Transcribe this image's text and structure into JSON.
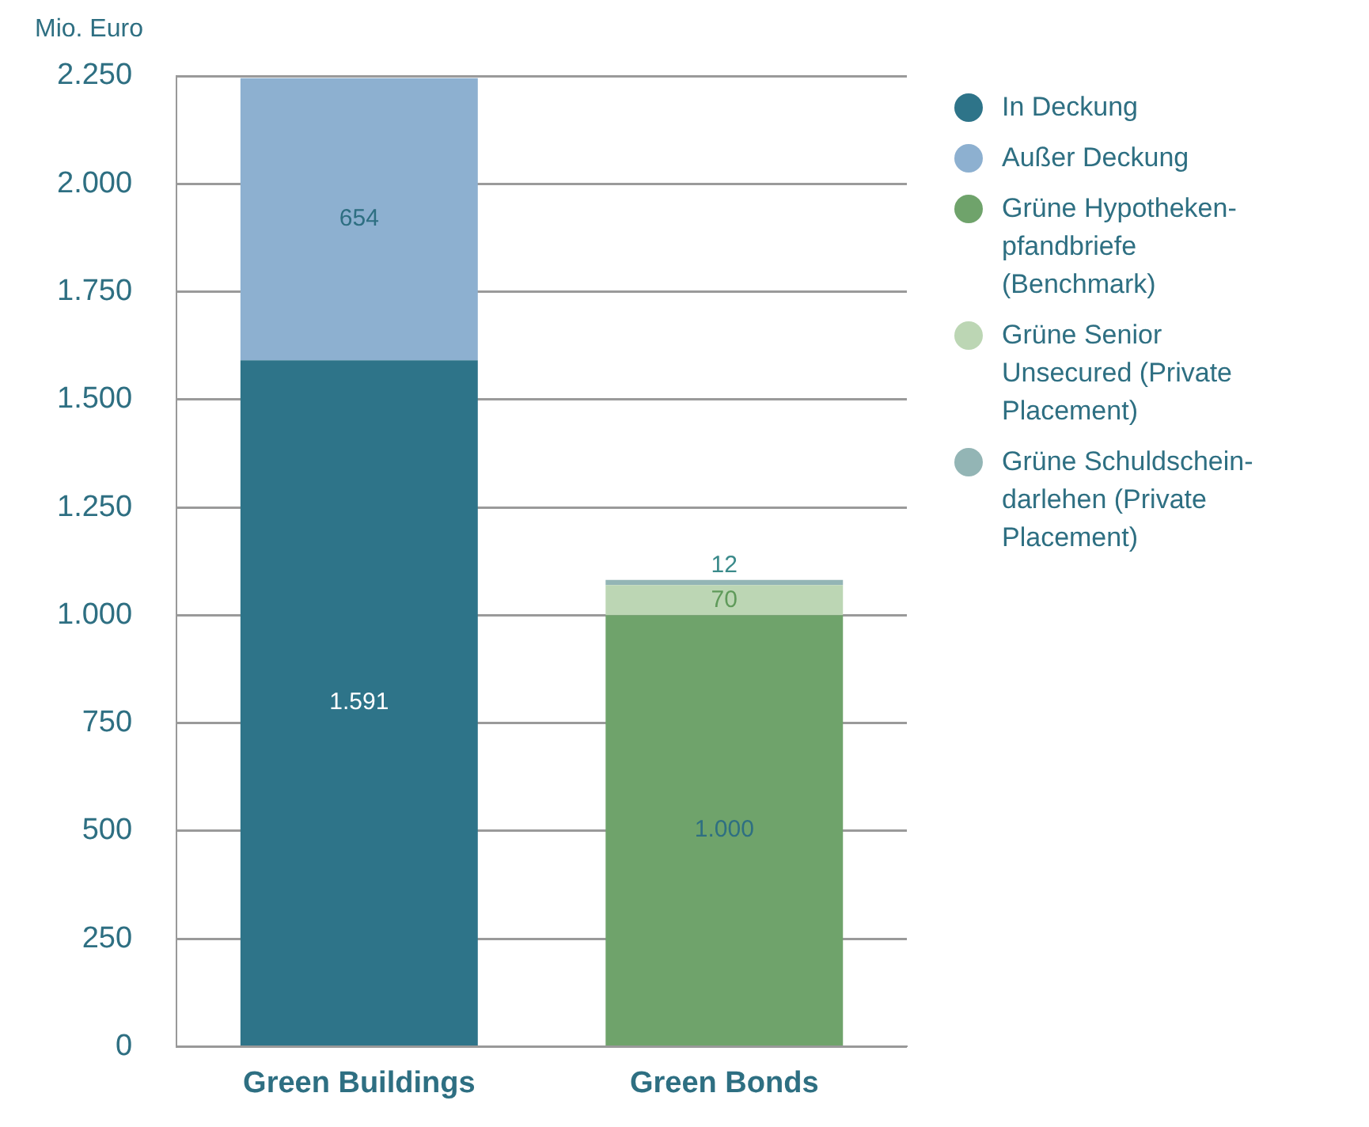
{
  "chart_data": {
    "type": "bar",
    "ylabel": "Mio. Euro",
    "categories": [
      "Green Buildings",
      "Green Bonds"
    ],
    "stacked": true,
    "series": [
      {
        "name": "In Deckung",
        "color": "#2e7489",
        "values": [
          1591,
          null
        ],
        "value_labels": [
          "1.591",
          null
        ]
      },
      {
        "name": "Außer Deckung",
        "color": "#8db0d0",
        "values": [
          654,
          null
        ],
        "value_labels": [
          "654",
          null
        ]
      },
      {
        "name": "Grüne Hypotheken-pfandbriefe (Benchmark)",
        "color": "#6fa36b",
        "values": [
          null,
          1000
        ],
        "value_labels": [
          null,
          "1.000"
        ]
      },
      {
        "name": "Grüne Senior Unsecured (Private Placement)",
        "color": "#bcd6b4",
        "values": [
          null,
          70
        ],
        "value_labels": [
          null,
          "70"
        ]
      },
      {
        "name": "Grüne Schuldschein-darlehen (Private Placement)",
        "color": "#93b5b5",
        "values": [
          null,
          12
        ],
        "value_labels": [
          null,
          "12"
        ]
      }
    ],
    "ylim": [
      0,
      2250
    ],
    "yticks": [
      0,
      250,
      500,
      750,
      {
        "value": 1000,
        "label": "1.000"
      },
      {
        "value": 1250,
        "label": "1.250"
      },
      {
        "value": 1500,
        "label": "1.500"
      },
      {
        "value": 1750,
        "label": "1.750"
      },
      {
        "value": 2000,
        "label": "2.000"
      },
      {
        "value": 2250,
        "label": "2.250"
      }
    ],
    "grid": "y",
    "legend": "top right"
  }
}
